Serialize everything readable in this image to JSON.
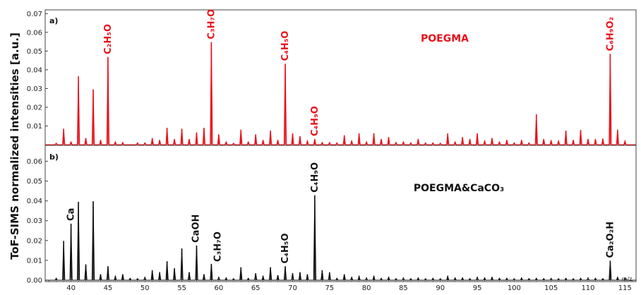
{
  "chart_data": {
    "type": "line",
    "ylabel": "ToF-SIMS normalized intensities [a.u.]",
    "x_unit_label": "m/z",
    "xlim": [
      36.5,
      116.5
    ],
    "x_ticks": [
      40,
      45,
      50,
      55,
      60,
      65,
      70,
      75,
      80,
      85,
      90,
      95,
      100,
      105,
      110,
      115
    ],
    "panels": [
      {
        "panel_label": "a)",
        "title": "POEGMA",
        "color": "#e8101a",
        "ylim": [
          0,
          0.072
        ],
        "y_ticks": [
          "0.01",
          "0.02",
          "0.03",
          "0.04",
          "0.05",
          "0.06",
          "0.07"
        ],
        "peaks": [
          [
            38,
            0.0008
          ],
          [
            39,
            0.0085
          ],
          [
            40,
            0.0015
          ],
          [
            41,
            0.0365
          ],
          [
            42,
            0.0035
          ],
          [
            43,
            0.0295
          ],
          [
            44,
            0.0025
          ],
          [
            45,
            0.0468
          ],
          [
            46,
            0.0015
          ],
          [
            47,
            0.0012
          ],
          [
            49,
            0.001
          ],
          [
            50,
            0.001
          ],
          [
            51,
            0.0035
          ],
          [
            52,
            0.0025
          ],
          [
            53,
            0.009
          ],
          [
            54,
            0.003
          ],
          [
            55,
            0.0085
          ],
          [
            56,
            0.003
          ],
          [
            57,
            0.0065
          ],
          [
            58,
            0.009
          ],
          [
            59,
            0.0548
          ],
          [
            60,
            0.0055
          ],
          [
            61,
            0.0015
          ],
          [
            62,
            0.0008
          ],
          [
            63,
            0.008
          ],
          [
            64,
            0.0015
          ],
          [
            65,
            0.0055
          ],
          [
            66,
            0.0025
          ],
          [
            67,
            0.0075
          ],
          [
            68,
            0.0025
          ],
          [
            69,
            0.0432
          ],
          [
            70,
            0.006
          ],
          [
            71,
            0.0045
          ],
          [
            72,
            0.002
          ],
          [
            73,
            0.003
          ],
          [
            74,
            0.0012
          ],
          [
            75,
            0.0012
          ],
          [
            76,
            0.001
          ],
          [
            77,
            0.005
          ],
          [
            78,
            0.002
          ],
          [
            79,
            0.006
          ],
          [
            80,
            0.0015
          ],
          [
            81,
            0.006
          ],
          [
            82,
            0.003
          ],
          [
            83,
            0.004
          ],
          [
            84,
            0.0012
          ],
          [
            85,
            0.0015
          ],
          [
            86,
            0.001
          ],
          [
            87,
            0.003
          ],
          [
            88,
            0.001
          ],
          [
            89,
            0.001
          ],
          [
            90,
            0.0008
          ],
          [
            91,
            0.006
          ],
          [
            92,
            0.0015
          ],
          [
            93,
            0.004
          ],
          [
            94,
            0.003
          ],
          [
            95,
            0.006
          ],
          [
            96,
            0.002
          ],
          [
            97,
            0.0035
          ],
          [
            98,
            0.0015
          ],
          [
            99,
            0.0025
          ],
          [
            100,
            0.001
          ],
          [
            101,
            0.0025
          ],
          [
            102,
            0.001
          ],
          [
            103,
            0.0162
          ],
          [
            104,
            0.003
          ],
          [
            105,
            0.0022
          ],
          [
            106,
            0.002
          ],
          [
            107,
            0.0075
          ],
          [
            108,
            0.0025
          ],
          [
            109,
            0.0078
          ],
          [
            110,
            0.003
          ],
          [
            111,
            0.003
          ],
          [
            112,
            0.0032
          ],
          [
            113,
            0.0485
          ],
          [
            114,
            0.008
          ],
          [
            115,
            0.002
          ]
        ],
        "annotations": [
          {
            "label": "C₂H₅O",
            "x": 45
          },
          {
            "label": "C₃H₇O",
            "x": 59
          },
          {
            "label": "C₄H₅O",
            "x": 69
          },
          {
            "label": "C₄H₉O",
            "x": 73
          },
          {
            "label": "C₆H₉O₂",
            "x": 113
          }
        ]
      },
      {
        "panel_label": "b)",
        "title": "POEGMA&CaCO₃",
        "color": "#111111",
        "ylim": [
          0,
          0.068
        ],
        "y_ticks": [
          "0.00",
          "0.01",
          "0.02",
          "0.03",
          "0.04",
          "0.05",
          "0.06"
        ],
        "peaks": [
          [
            38,
            0.001
          ],
          [
            39,
            0.0198
          ],
          [
            40,
            0.0285
          ],
          [
            41,
            0.0395
          ],
          [
            42,
            0.008
          ],
          [
            43,
            0.0398
          ],
          [
            44,
            0.003
          ],
          [
            45,
            0.007
          ],
          [
            46,
            0.002
          ],
          [
            47,
            0.003
          ],
          [
            48,
            0.001
          ],
          [
            49,
            0.0008
          ],
          [
            50,
            0.0015
          ],
          [
            51,
            0.005
          ],
          [
            52,
            0.004
          ],
          [
            53,
            0.0095
          ],
          [
            54,
            0.006
          ],
          [
            55,
            0.016
          ],
          [
            56,
            0.004
          ],
          [
            57,
            0.0175
          ],
          [
            58,
            0.003
          ],
          [
            59,
            0.0082
          ],
          [
            60,
            0.0015
          ],
          [
            61,
            0.0012
          ],
          [
            62,
            0.0008
          ],
          [
            63,
            0.0065
          ],
          [
            64,
            0.001
          ],
          [
            65,
            0.0035
          ],
          [
            66,
            0.002
          ],
          [
            67,
            0.0065
          ],
          [
            68,
            0.0025
          ],
          [
            69,
            0.007
          ],
          [
            70,
            0.0035
          ],
          [
            71,
            0.004
          ],
          [
            72,
            0.003
          ],
          [
            73,
            0.0428
          ],
          [
            74,
            0.005
          ],
          [
            75,
            0.004
          ],
          [
            76,
            0.001
          ],
          [
            77,
            0.003
          ],
          [
            78,
            0.0015
          ],
          [
            79,
            0.002
          ],
          [
            80,
            0.0012
          ],
          [
            81,
            0.002
          ],
          [
            82,
            0.001
          ],
          [
            83,
            0.0015
          ],
          [
            84,
            0.0008
          ],
          [
            85,
            0.0012
          ],
          [
            86,
            0.0008
          ],
          [
            87,
            0.0012
          ],
          [
            88,
            0.0008
          ],
          [
            89,
            0.001
          ],
          [
            90,
            0.0008
          ],
          [
            91,
            0.002
          ],
          [
            92,
            0.0012
          ],
          [
            93,
            0.0012
          ],
          [
            94,
            0.0008
          ],
          [
            95,
            0.0015
          ],
          [
            96,
            0.0012
          ],
          [
            97,
            0.0015
          ],
          [
            98,
            0.001
          ],
          [
            99,
            0.001
          ],
          [
            100,
            0.0008
          ],
          [
            101,
            0.0012
          ],
          [
            102,
            0.0008
          ],
          [
            103,
            0.001
          ],
          [
            104,
            0.0008
          ],
          [
            105,
            0.001
          ],
          [
            106,
            0.0008
          ],
          [
            107,
            0.001
          ],
          [
            108,
            0.0008
          ],
          [
            109,
            0.001
          ],
          [
            110,
            0.0012
          ],
          [
            111,
            0.001
          ],
          [
            112,
            0.0008
          ],
          [
            113,
            0.0098
          ],
          [
            114,
            0.0015
          ],
          [
            115,
            0.0012
          ]
        ],
        "annotations": [
          {
            "label": "Ca",
            "x": 40
          },
          {
            "label": "CaOH",
            "x": 57
          },
          {
            "label": "C₃H₇O",
            "x": 59
          },
          {
            "label": "C₄H₅O",
            "x": 69
          },
          {
            "label": "C₄H₉O",
            "x": 73
          },
          {
            "label": "Ca₂O₂H",
            "x": 113
          }
        ]
      }
    ]
  }
}
